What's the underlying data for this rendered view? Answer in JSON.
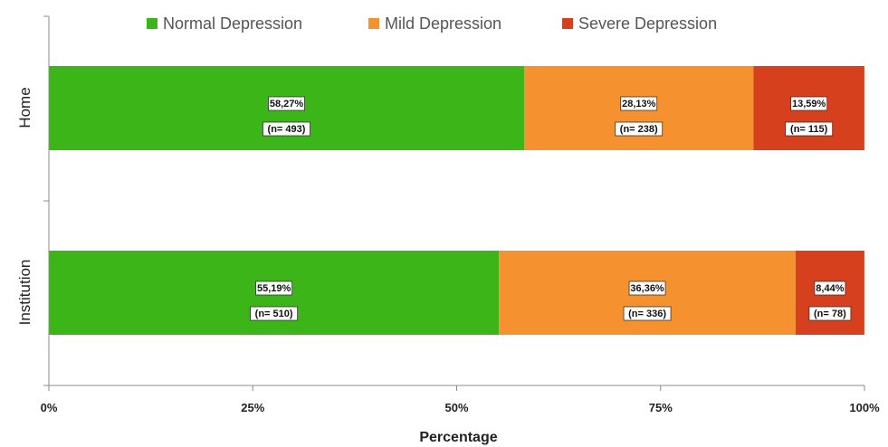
{
  "chart_data": {
    "type": "bar",
    "orientation": "horizontal",
    "stacked": true,
    "percent_stacked": true,
    "categories": [
      "Home",
      "Institution"
    ],
    "series": [
      {
        "name": "Normal Depression",
        "color": "#3cb519",
        "values": [
          58.27,
          55.19
        ],
        "labels": [
          "58,27%",
          "55,19%"
        ],
        "counts": [
          "(n= 493)",
          "(n= 510)"
        ]
      },
      {
        "name": "Mild Depression",
        "color": "#f5922f",
        "values": [
          28.13,
          36.36
        ],
        "labels": [
          "28,13%",
          "36,36%"
        ],
        "counts": [
          "(n= 238)",
          "(n= 336)"
        ]
      },
      {
        "name": "Severe Depression",
        "color": "#d7401c",
        "values": [
          13.59,
          8.44
        ],
        "labels": [
          "13,59%",
          "8,44%"
        ],
        "counts": [
          "(n= 115)",
          "(n= 78)"
        ]
      }
    ],
    "xlabel": "Percentage",
    "ylabel": "",
    "xlim": [
      0,
      100
    ],
    "x_ticks": [
      "0%",
      "25%",
      "50%",
      "75%",
      "100%"
    ],
    "grid": false,
    "legend_position": "top"
  }
}
